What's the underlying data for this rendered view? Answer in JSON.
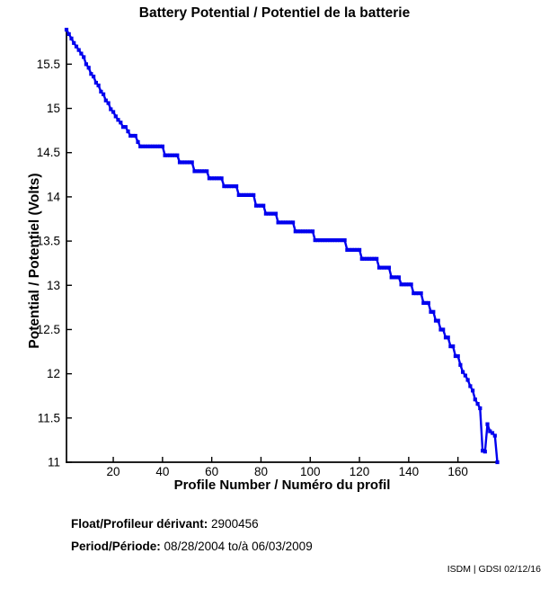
{
  "chart_data": {
    "type": "line",
    "title": "Battery Potential / Potentiel de la batterie",
    "xlabel": "Profile Number / Numéro du profil",
    "ylabel": "Potential / Potentiel (Volts)",
    "xlim": [
      1,
      176
    ],
    "ylim": [
      11,
      15.89
    ],
    "xticks": [
      20,
      40,
      60,
      80,
      100,
      120,
      140,
      160
    ],
    "yticks": [
      11,
      11.5,
      12,
      12.5,
      13,
      13.5,
      14,
      14.5,
      15,
      15.5
    ],
    "grid": false,
    "legend_position": "none",
    "marker": "square",
    "line_color": "#0000ee",
    "axis_color": "#000000",
    "series": [
      {
        "name": "battery-potential-volts",
        "x_start": 1,
        "x_step": 1,
        "values": [
          15.89,
          15.84,
          15.79,
          15.74,
          15.7,
          15.66,
          15.62,
          15.58,
          15.5,
          15.46,
          15.39,
          15.36,
          15.29,
          15.26,
          15.19,
          15.16,
          15.09,
          15.06,
          14.99,
          14.96,
          14.91,
          14.87,
          14.84,
          14.79,
          14.79,
          14.74,
          14.69,
          14.69,
          14.69,
          14.62,
          14.57,
          14.57,
          14.57,
          14.57,
          14.57,
          14.57,
          14.57,
          14.57,
          14.57,
          14.57,
          14.47,
          14.47,
          14.47,
          14.47,
          14.47,
          14.47,
          14.39,
          14.39,
          14.39,
          14.39,
          14.39,
          14.39,
          14.29,
          14.29,
          14.29,
          14.29,
          14.29,
          14.29,
          14.21,
          14.21,
          14.21,
          14.21,
          14.21,
          14.21,
          14.12,
          14.12,
          14.12,
          14.12,
          14.12,
          14.12,
          14.02,
          14.02,
          14.02,
          14.02,
          14.02,
          14.02,
          14.02,
          13.9,
          13.9,
          13.9,
          13.9,
          13.81,
          13.81,
          13.81,
          13.81,
          13.81,
          13.71,
          13.71,
          13.71,
          13.71,
          13.71,
          13.71,
          13.71,
          13.61,
          13.61,
          13.61,
          13.61,
          13.61,
          13.61,
          13.61,
          13.61,
          13.51,
          13.51,
          13.51,
          13.51,
          13.51,
          13.51,
          13.51,
          13.51,
          13.51,
          13.51,
          13.51,
          13.51,
          13.51,
          13.4,
          13.4,
          13.4,
          13.4,
          13.4,
          13.4,
          13.3,
          13.3,
          13.3,
          13.3,
          13.3,
          13.3,
          13.3,
          13.2,
          13.2,
          13.2,
          13.2,
          13.2,
          13.09,
          13.09,
          13.09,
          13.09,
          13.01,
          13.01,
          13.01,
          13.01,
          13.01,
          12.91,
          12.91,
          12.91,
          12.91,
          12.8,
          12.8,
          12.8,
          12.7,
          12.7,
          12.6,
          12.6,
          12.5,
          12.5,
          12.41,
          12.41,
          12.31,
          12.31,
          12.2,
          12.2,
          12.1,
          12.02,
          11.98,
          11.93,
          11.86,
          11.81,
          11.71,
          11.66,
          11.61,
          11.13,
          11.12,
          11.43,
          11.35,
          11.33,
          11.3,
          11.0
        ]
      }
    ]
  },
  "footer": {
    "float_label": "Float/Profileur dérivant:",
    "float_value": "2900456",
    "period_label": "Period/Période:",
    "period_value": "08/28/2004 to/à 06/03/2009"
  },
  "credit": "ISDM | GDSI 02/12/16"
}
